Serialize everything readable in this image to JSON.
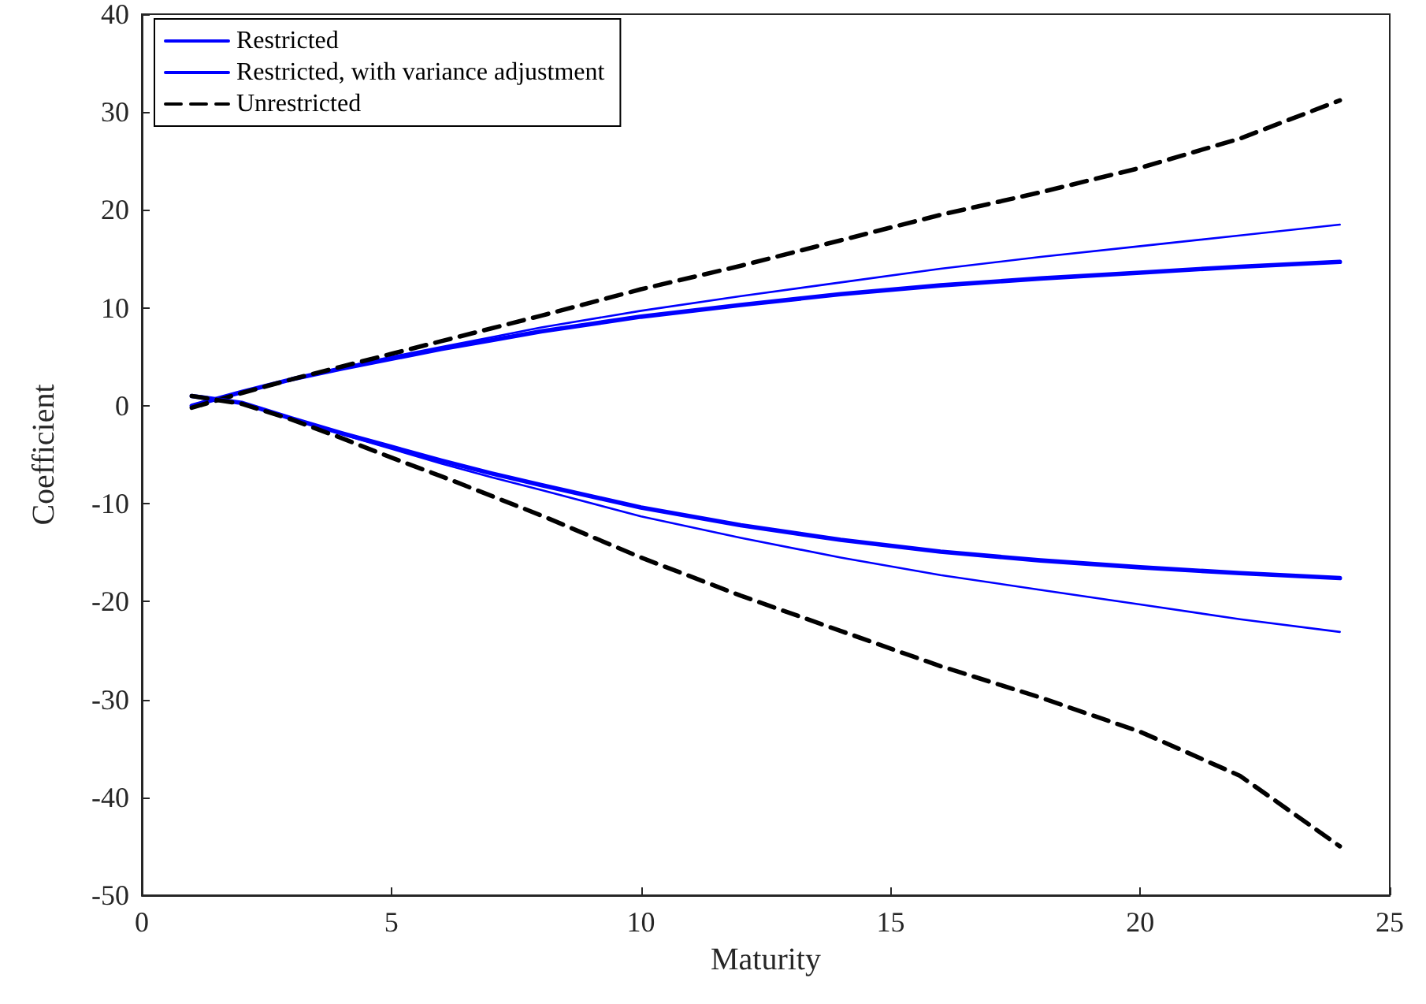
{
  "chart_data": {
    "type": "line",
    "xlabel": "Maturity",
    "ylabel": "Coefficient",
    "x": [
      1,
      2,
      3,
      4,
      5,
      6,
      7,
      8,
      10,
      12,
      14,
      16,
      18,
      20,
      22,
      24
    ],
    "series": [
      {
        "name": "Restricted",
        "color": "#0000ff",
        "line_style": "solid",
        "values": [
          0,
          1.4,
          2.7,
          3.8,
          4.8,
          5.8,
          6.7,
          7.6,
          9.1,
          10.3,
          11.4,
          12.3,
          13.0,
          13.6,
          14.2,
          14.7
        ]
      },
      {
        "name": "Restricted, with variance adjustment",
        "color": "#0000ff",
        "line_style": "solid",
        "values": [
          0,
          1.4,
          2.7,
          3.9,
          5.0,
          6.0,
          7.0,
          8.0,
          9.7,
          11.2,
          12.6,
          14.0,
          15.2,
          16.3,
          17.4,
          18.5
        ]
      },
      {
        "name": "Unrestricted",
        "color": "#000000",
        "line_style": "dashed",
        "values": [
          -0.2,
          1.3,
          2.7,
          4.0,
          5.3,
          6.6,
          7.9,
          9.2,
          11.9,
          14.3,
          16.9,
          19.5,
          21.8,
          24.3,
          27.3,
          31.2
        ]
      },
      {
        "color": "#0000ff",
        "line_style": "solid",
        "values": [
          1.0,
          0.3,
          -1.3,
          -2.8,
          -4.2,
          -5.6,
          -6.9,
          -8.1,
          -10.4,
          -12.2,
          -13.7,
          -14.9,
          -15.8,
          -16.5,
          -17.1,
          -17.6
        ]
      },
      {
        "color": "#0000ff",
        "line_style": "solid",
        "values": [
          1.0,
          0.3,
          -1.3,
          -2.9,
          -4.4,
          -5.9,
          -7.3,
          -8.6,
          -11.3,
          -13.5,
          -15.5,
          -17.3,
          -18.8,
          -20.3,
          -21.8,
          -23.1
        ]
      },
      {
        "color": "#000000",
        "line_style": "dashed",
        "values": [
          1.0,
          0.2,
          -1.4,
          -3.3,
          -5.3,
          -7.2,
          -9.2,
          -11.2,
          -15.5,
          -19.4,
          -23.0,
          -26.6,
          -29.8,
          -33.3,
          -37.8,
          -45.0
        ]
      }
    ],
    "xlim": [
      0,
      25
    ],
    "xticks": [
      0,
      5,
      10,
      15,
      20,
      25
    ],
    "ylim": [
      -50,
      40
    ],
    "yticks": [
      -50,
      -40,
      -30,
      -20,
      -10,
      0,
      10,
      20,
      30,
      40
    ],
    "grid": false,
    "legend": "top left",
    "marker": "none"
  }
}
